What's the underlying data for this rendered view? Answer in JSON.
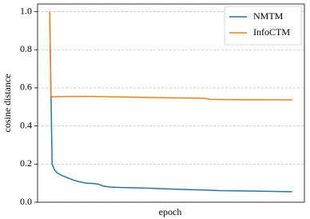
{
  "chart_data": {
    "type": "line",
    "xlabel": "epoch",
    "ylabel": "cosine distance",
    "x": [
      0,
      0.5,
      1,
      2,
      3,
      5,
      8,
      10,
      12,
      15,
      18,
      20,
      22,
      25,
      30,
      40,
      50,
      60,
      64,
      66,
      70,
      80,
      90,
      100
    ],
    "series": [
      {
        "name": "NMTM",
        "color": "#1f77b4",
        "values": [
          1.0,
          0.6,
          0.2,
          0.17,
          0.155,
          0.14,
          0.125,
          0.115,
          0.108,
          0.1,
          0.098,
          0.095,
          0.085,
          0.079,
          0.077,
          0.074,
          0.069,
          0.065,
          0.064,
          0.063,
          0.061,
          0.059,
          0.057,
          0.055
        ]
      },
      {
        "name": "InfoCTM",
        "color": "#ff7f0e",
        "values": [
          1.0,
          0.56,
          0.553,
          0.553,
          0.554,
          0.554,
          0.555,
          0.555,
          0.555,
          0.555,
          0.555,
          0.554,
          0.554,
          0.553,
          0.552,
          0.55,
          0.548,
          0.546,
          0.545,
          0.54,
          0.539,
          0.538,
          0.538,
          0.537
        ]
      }
    ],
    "xlim": [
      -5,
      105
    ],
    "ylim": [
      0,
      1.04
    ],
    "yticks": [
      {
        "value": 0,
        "label": "0.0"
      },
      0.2,
      0.4,
      0.6,
      0.8,
      {
        "value": 1,
        "label": "1.0"
      }
    ],
    "grid": true,
    "legend": "upper-right"
  }
}
